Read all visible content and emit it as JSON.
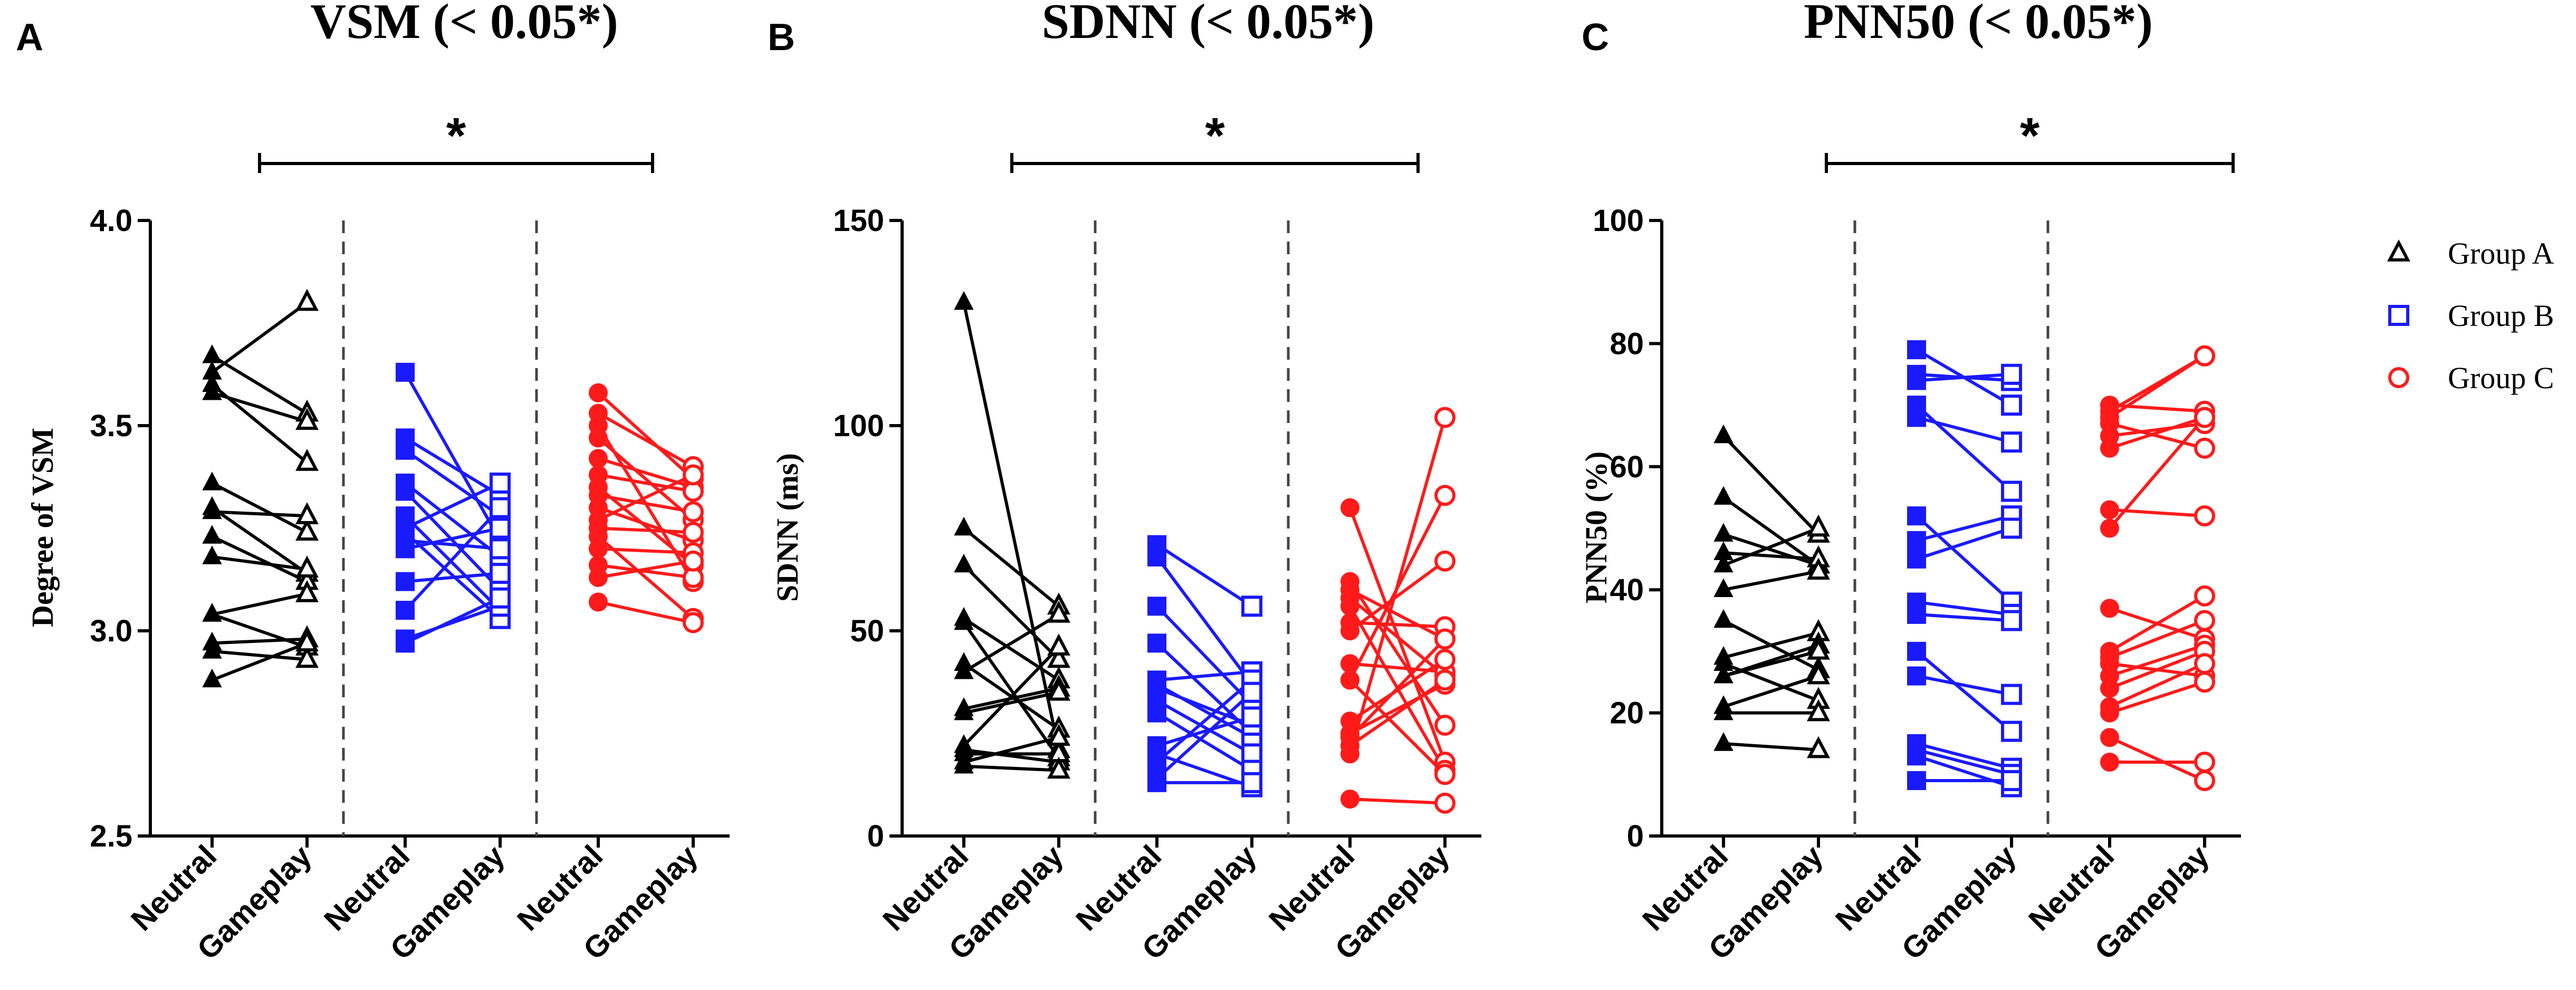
{
  "colors": {
    "group_a": "#000000",
    "group_b": "#1a1aff",
    "group_c": "#ff1a1a"
  },
  "legend": {
    "items": [
      {
        "label": "Group A",
        "color": "#000000",
        "marker": "triangle-open"
      },
      {
        "label": "Group B",
        "color": "#1a1aff",
        "marker": "square-open"
      },
      {
        "label": "Group C",
        "color": "#ff1a1a",
        "marker": "circle-open"
      }
    ]
  },
  "chart_data": [
    {
      "type": "scatter",
      "panel_letter": "A",
      "title": "VSM (< 0.05*)",
      "ylabel": "Degree of VSM",
      "ylim": [
        2.5,
        4.0
      ],
      "yticks": [
        "2.5",
        "3.0",
        "3.5",
        "4.0"
      ],
      "ytick_values": [
        2.5,
        3.0,
        3.5,
        4.0
      ],
      "categories": [
        "Neutral",
        "Gameplay",
        "Neutral",
        "Gameplay",
        "Neutral",
        "Gameplay"
      ],
      "significance": "*",
      "groups": [
        {
          "name": "Group A",
          "color": "#000000",
          "marker": "triangle",
          "pairs": [
            [
              3.67,
              3.53
            ],
            [
              3.63,
              3.8
            ],
            [
              3.6,
              3.41
            ],
            [
              3.58,
              3.51
            ],
            [
              3.36,
              3.24
            ],
            [
              3.3,
              3.14
            ],
            [
              3.29,
              3.28
            ],
            [
              3.23,
              3.12
            ],
            [
              3.18,
              3.15
            ],
            [
              3.04,
              3.09
            ],
            [
              3.04,
              2.96
            ],
            [
              2.97,
              2.98
            ],
            [
              2.95,
              2.93
            ],
            [
              2.88,
              2.97
            ]
          ]
        },
        {
          "name": "Group B",
          "color": "#1a1aff",
          "marker": "square",
          "pairs": [
            [
              3.63,
              3.22
            ],
            [
              3.47,
              3.33
            ],
            [
              3.44,
              3.28
            ],
            [
              3.36,
              3.18
            ],
            [
              3.34,
              3.1
            ],
            [
              3.28,
              3.05
            ],
            [
              3.25,
              3.36
            ],
            [
              3.24,
              3.03
            ],
            [
              3.22,
              3.2
            ],
            [
              3.2,
              3.25
            ],
            [
              3.12,
              3.14
            ],
            [
              3.05,
              3.3
            ],
            [
              2.98,
              3.06
            ],
            [
              2.97,
              3.08
            ]
          ]
        },
        {
          "name": "Group C",
          "color": "#ff1a1a",
          "marker": "circle",
          "pairs": [
            [
              3.58,
              3.37
            ],
            [
              3.53,
              3.4
            ],
            [
              3.5,
              3.12
            ],
            [
              3.47,
              3.27
            ],
            [
              3.42,
              3.35
            ],
            [
              3.38,
              3.34
            ],
            [
              3.35,
              3.16
            ],
            [
              3.33,
              3.29
            ],
            [
              3.3,
              3.22
            ],
            [
              3.27,
              3.38
            ],
            [
              3.25,
              3.24
            ],
            [
              3.23,
              3.03
            ],
            [
              3.2,
              3.19
            ],
            [
              3.16,
              3.13
            ],
            [
              3.13,
              3.17
            ],
            [
              3.07,
              3.02
            ]
          ]
        }
      ]
    },
    {
      "type": "scatter",
      "panel_letter": "B",
      "title": "SDNN (< 0.05*)",
      "ylabel": "SDNN (ms)",
      "ylim": [
        0,
        150
      ],
      "yticks": [
        "0",
        "50",
        "100",
        "150"
      ],
      "ytick_values": [
        0,
        50,
        100,
        150
      ],
      "categories": [
        "Neutral",
        "Gameplay",
        "Neutral",
        "Gameplay",
        "Neutral",
        "Gameplay"
      ],
      "significance": "*",
      "groups": [
        {
          "name": "Group A",
          "color": "#000000",
          "marker": "triangle",
          "pairs": [
            [
              130,
              21
            ],
            [
              75,
              56
            ],
            [
              66,
              43
            ],
            [
              53,
              38
            ],
            [
              52,
              19
            ],
            [
              42,
              26
            ],
            [
              40,
              54
            ],
            [
              31,
              36
            ],
            [
              30,
              35
            ],
            [
              22,
              46
            ],
            [
              21,
              18
            ],
            [
              20,
              20
            ],
            [
              18,
              24
            ],
            [
              17,
              16
            ]
          ]
        },
        {
          "name": "Group B",
          "color": "#1a1aff",
          "marker": "square",
          "pairs": [
            [
              71,
              56
            ],
            [
              68,
              37
            ],
            [
              56,
              32
            ],
            [
              47,
              25
            ],
            [
              38,
              40
            ],
            [
              37,
              24
            ],
            [
              36,
              27
            ],
            [
              33,
              20
            ],
            [
              30,
              16
            ],
            [
              22,
              29
            ],
            [
              20,
              12
            ],
            [
              18,
              38
            ],
            [
              14,
              35
            ],
            [
              13,
              13
            ]
          ]
        },
        {
          "name": "Group C",
          "color": "#ff1a1a",
          "marker": "circle",
          "pairs": [
            [
              80,
              18
            ],
            [
              62,
              27
            ],
            [
              60,
              48
            ],
            [
              58,
              39
            ],
            [
              56,
              16
            ],
            [
              52,
              51
            ],
            [
              50,
              67
            ],
            [
              42,
              40
            ],
            [
              38,
              83
            ],
            [
              38,
              15
            ],
            [
              28,
              43
            ],
            [
              25,
              37
            ],
            [
              24,
              48
            ],
            [
              22,
              38
            ],
            [
              20,
              102
            ],
            [
              9,
              8
            ]
          ]
        }
      ]
    },
    {
      "type": "scatter",
      "panel_letter": "C",
      "title": "PNN50 (< 0.05*)",
      "ylabel": "PNN50 (%)",
      "ylim": [
        0,
        100
      ],
      "yticks": [
        "0",
        "20",
        "40",
        "60",
        "80",
        "100"
      ],
      "ytick_values": [
        0,
        20,
        40,
        60,
        80,
        100
      ],
      "categories": [
        "Neutral",
        "Gameplay",
        "Neutral",
        "Gameplay",
        "Neutral",
        "Gameplay"
      ],
      "significance": "*",
      "groups": [
        {
          "name": "Group A",
          "color": "#000000",
          "marker": "triangle",
          "pairs": [
            [
              65,
              49
            ],
            [
              55,
              44
            ],
            [
              49,
              44
            ],
            [
              46,
              45
            ],
            [
              44,
              50
            ],
            [
              40,
              43
            ],
            [
              35,
              27
            ],
            [
              29,
              33
            ],
            [
              28,
              22
            ],
            [
              26,
              31
            ],
            [
              26,
              30
            ],
            [
              21,
              26
            ],
            [
              20,
              20
            ],
            [
              15,
              14
            ]
          ]
        },
        {
          "name": "Group B",
          "color": "#1a1aff",
          "marker": "square",
          "pairs": [
            [
              79,
              70
            ],
            [
              75,
              74
            ],
            [
              74,
              75
            ],
            [
              70,
              56
            ],
            [
              68,
              64
            ],
            [
              52,
              38
            ],
            [
              48,
              52
            ],
            [
              45,
              50
            ],
            [
              38,
              36
            ],
            [
              36,
              35
            ],
            [
              30,
              17
            ],
            [
              26,
              23
            ],
            [
              15,
              11
            ],
            [
              14,
              10
            ],
            [
              13,
              8
            ],
            [
              9,
              9
            ]
          ]
        },
        {
          "name": "Group C",
          "color": "#ff1a1a",
          "marker": "circle",
          "pairs": [
            [
              70,
              69
            ],
            [
              69,
              78
            ],
            [
              68,
              78
            ],
            [
              67,
              63
            ],
            [
              65,
              67
            ],
            [
              63,
              68
            ],
            [
              53,
              52
            ],
            [
              50,
              68
            ],
            [
              37,
              32
            ],
            [
              30,
              39
            ],
            [
              29,
              35
            ],
            [
              28,
              26
            ],
            [
              26,
              31
            ],
            [
              24,
              30
            ],
            [
              21,
              28
            ],
            [
              20,
              25
            ],
            [
              16,
              9
            ],
            [
              12,
              12
            ]
          ]
        }
      ]
    }
  ]
}
